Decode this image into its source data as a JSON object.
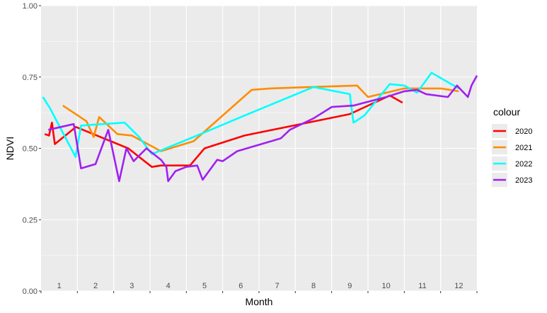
{
  "chart_data": {
    "type": "line",
    "title": "",
    "xlabel": "Month",
    "ylabel": "NDVI",
    "xlim": [
      0,
      12
    ],
    "ylim": [
      0,
      1
    ],
    "yticks": [
      0.0,
      0.25,
      0.5,
      0.75,
      1.0
    ],
    "ytick_labels": [
      "0.00",
      "0.25",
      "0.50",
      "0.75",
      "1.00"
    ],
    "month_labels": [
      "1",
      "2",
      "3",
      "4",
      "5",
      "6",
      "7",
      "8",
      "9",
      "10",
      "11",
      "12"
    ],
    "grid": true,
    "background": "#EBEBEB",
    "legend": {
      "title": "colour",
      "position": "right"
    },
    "series": [
      {
        "name": "2020",
        "color": "#FF0000",
        "points": [
          [
            0.1,
            0.55
          ],
          [
            0.22,
            0.545
          ],
          [
            0.3,
            0.59
          ],
          [
            0.38,
            0.515
          ],
          [
            0.96,
            0.575
          ],
          [
            2.4,
            0.5
          ],
          [
            3.05,
            0.435
          ],
          [
            3.3,
            0.44
          ],
          [
            4.1,
            0.44
          ],
          [
            4.5,
            0.5
          ],
          [
            5.6,
            0.545
          ],
          [
            8.5,
            0.62
          ],
          [
            9.6,
            0.685
          ],
          [
            9.95,
            0.66
          ]
        ]
      },
      {
        "name": "2021",
        "color": "#FF8C00",
        "points": [
          [
            0.6,
            0.65
          ],
          [
            1.25,
            0.595
          ],
          [
            1.45,
            0.54
          ],
          [
            1.6,
            0.61
          ],
          [
            2.1,
            0.55
          ],
          [
            2.5,
            0.545
          ],
          [
            3.3,
            0.49
          ],
          [
            4.2,
            0.525
          ],
          [
            5.8,
            0.705
          ],
          [
            6.3,
            0.71
          ],
          [
            7.4,
            0.715
          ],
          [
            8.7,
            0.72
          ],
          [
            9.0,
            0.68
          ],
          [
            10.0,
            0.71
          ],
          [
            11.0,
            0.71
          ],
          [
            11.5,
            0.7
          ]
        ]
      },
      {
        "name": "2022",
        "color": "#00FFFF",
        "points": [
          [
            0.05,
            0.68
          ],
          [
            0.25,
            0.64
          ],
          [
            0.95,
            0.47
          ],
          [
            1.1,
            0.58
          ],
          [
            2.3,
            0.59
          ],
          [
            2.7,
            0.54
          ],
          [
            3.05,
            0.48
          ],
          [
            4.2,
            0.54
          ],
          [
            5.6,
            0.615
          ],
          [
            7.5,
            0.715
          ],
          [
            8.5,
            0.69
          ],
          [
            8.6,
            0.59
          ],
          [
            8.9,
            0.615
          ],
          [
            9.6,
            0.725
          ],
          [
            10.0,
            0.72
          ],
          [
            10.35,
            0.695
          ],
          [
            10.55,
            0.73
          ],
          [
            10.75,
            0.765
          ],
          [
            11.5,
            0.71
          ]
        ]
      },
      {
        "name": "2023",
        "color": "#A020F0",
        "points": [
          [
            0.2,
            0.565
          ],
          [
            0.9,
            0.585
          ],
          [
            1.1,
            0.43
          ],
          [
            1.5,
            0.445
          ],
          [
            1.85,
            0.565
          ],
          [
            2.15,
            0.385
          ],
          [
            2.35,
            0.5
          ],
          [
            2.55,
            0.455
          ],
          [
            2.9,
            0.5
          ],
          [
            3.3,
            0.46
          ],
          [
            3.45,
            0.435
          ],
          [
            3.5,
            0.385
          ],
          [
            3.7,
            0.42
          ],
          [
            4.0,
            0.435
          ],
          [
            4.3,
            0.44
          ],
          [
            4.45,
            0.39
          ],
          [
            4.85,
            0.46
          ],
          [
            5.0,
            0.455
          ],
          [
            5.4,
            0.49
          ],
          [
            6.6,
            0.535
          ],
          [
            6.85,
            0.565
          ],
          [
            7.5,
            0.605
          ],
          [
            8.0,
            0.645
          ],
          [
            8.6,
            0.65
          ],
          [
            9.5,
            0.68
          ],
          [
            10.0,
            0.7
          ],
          [
            10.35,
            0.705
          ],
          [
            10.6,
            0.69
          ],
          [
            11.2,
            0.68
          ],
          [
            11.45,
            0.72
          ],
          [
            11.75,
            0.68
          ],
          [
            11.85,
            0.72
          ],
          [
            12.0,
            0.755
          ]
        ]
      }
    ]
  }
}
